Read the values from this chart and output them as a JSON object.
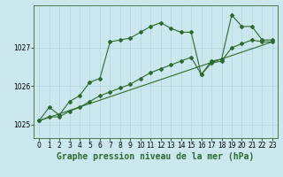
{
  "title": "Graphe pression niveau de la mer (hPa)",
  "bg_color": "#cce8ef",
  "line_color": "#2d6a2d",
  "grid_color": "#b0d8e0",
  "xlim": [
    -0.5,
    23.5
  ],
  "ylim": [
    1024.65,
    1028.1
  ],
  "yticks": [
    1025,
    1026,
    1027
  ],
  "xtick_labels": [
    "0",
    "1",
    "2",
    "3",
    "4",
    "5",
    "6",
    "7",
    "8",
    "9",
    "10",
    "11",
    "12",
    "13",
    "14",
    "15",
    "16",
    "17",
    "18",
    "19",
    "20",
    "21",
    "22",
    "23"
  ],
  "series1_x": [
    0,
    1,
    2,
    3,
    4,
    5,
    6,
    7,
    8,
    9,
    10,
    11,
    12,
    13,
    14,
    15,
    16,
    17,
    18,
    19,
    20,
    21,
    22,
    23
  ],
  "series1_y": [
    1025.1,
    1025.45,
    1025.25,
    1025.6,
    1025.75,
    1026.1,
    1026.2,
    1027.15,
    1027.2,
    1027.25,
    1027.4,
    1027.55,
    1027.65,
    1027.5,
    1027.4,
    1027.4,
    1026.3,
    1026.65,
    1026.7,
    1027.85,
    1027.55,
    1027.55,
    1027.2,
    1027.2
  ],
  "series2_x": [
    0,
    1,
    2,
    3,
    4,
    5,
    6,
    7,
    8,
    9,
    10,
    11,
    12,
    13,
    14,
    15,
    16,
    17,
    18,
    19,
    20,
    21,
    22,
    23
  ],
  "series2_y": [
    1025.1,
    1025.2,
    1025.2,
    1025.35,
    1025.45,
    1025.6,
    1025.75,
    1025.85,
    1025.95,
    1026.05,
    1026.2,
    1026.35,
    1026.45,
    1026.55,
    1026.65,
    1026.75,
    1026.3,
    1026.6,
    1026.65,
    1027.0,
    1027.1,
    1027.2,
    1027.15,
    1027.15
  ],
  "series3_x": [
    0,
    23
  ],
  "series3_y": [
    1025.1,
    1027.15
  ],
  "series4_x": [
    0,
    23
  ],
  "series4_y": [
    1025.1,
    1027.15
  ],
  "title_fontsize": 7,
  "tick_fontsize": 5.5
}
